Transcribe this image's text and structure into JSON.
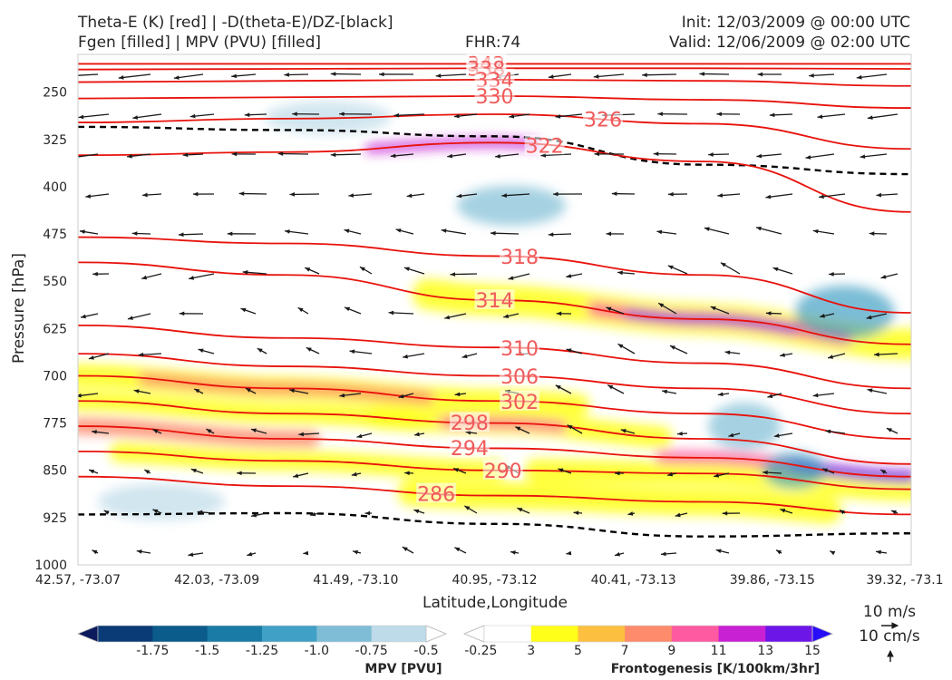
{
  "header": {
    "left_line1": "Theta-E (K) [red] | -D(theta-E)/DZ-[black]",
    "left_line2": "Fgen [filled] | MPV (PVU) [filled]",
    "center": "FHR:74",
    "right_line1": "Init: 12/03/2009 @ 00:00 UTC",
    "right_line2": "Valid: 12/06/2009 @ 02:00 UTC"
  },
  "chart_data": {
    "type": "cross-section",
    "xlabel": "Latitude,Longitude",
    "ylabel": "Pressure [hPa]",
    "x_tick_labels": [
      "42.57, -73.07",
      "42.03, -73.09",
      "41.49, -73.10",
      "40.95, -73.12",
      "40.41, -73.13",
      "39.86, -73.15",
      "39.32, -73.1"
    ],
    "y_ticks": [
      250,
      325,
      400,
      475,
      550,
      625,
      700,
      775,
      850,
      925,
      1000
    ],
    "ylim": [
      1000,
      190
    ],
    "y_scale": "linear",
    "theta_e_contours": [
      {
        "label": "342",
        "y": [
          205,
          205,
          205,
          205,
          205
        ]
      },
      {
        "label": "338",
        "y": [
          214,
          213,
          212,
          212,
          213
        ]
      },
      {
        "label": "334",
        "y": [
          234,
          232,
          230,
          232,
          240
        ]
      },
      {
        "label": "330",
        "y": [
          260,
          258,
          256,
          262,
          275
        ]
      },
      {
        "label": "326",
        "y": [
          298,
          292,
          285,
          300,
          340
        ]
      },
      {
        "label": "322",
        "y": [
          350,
          345,
          330,
          360,
          440
        ]
      },
      {
        "label": "318",
        "y": [
          480,
          490,
          510,
          540,
          600
        ]
      },
      {
        "label": "314",
        "y": [
          520,
          540,
          580,
          610,
          650
        ]
      },
      {
        "label": "310",
        "y": [
          620,
          640,
          655,
          680,
          720
        ]
      },
      {
        "label": "306",
        "y": [
          665,
          685,
          700,
          720,
          760
        ]
      },
      {
        "label": "302",
        "y": [
          700,
          720,
          740,
          760,
          800
        ]
      },
      {
        "label": "298",
        "y": [
          740,
          760,
          775,
          800,
          840
        ]
      },
      {
        "label": "294",
        "y": [
          780,
          800,
          815,
          830,
          860
        ]
      },
      {
        "label": "290",
        "y": [
          820,
          835,
          850,
          855,
          880
        ]
      },
      {
        "label": "286",
        "y": [
          860,
          875,
          890,
          900,
          920
        ]
      }
    ],
    "ddz_contours": [
      {
        "y": [
          305,
          310,
          320,
          365,
          380
        ]
      },
      {
        "y": [
          920,
          918,
          935,
          955,
          950
        ]
      }
    ],
    "fgen_colorbar": {
      "title": "Frontogenesis [K/100km/3hr]",
      "ticks": [
        "3",
        "5",
        "7",
        "9",
        "11",
        "13",
        "15"
      ],
      "colors": [
        "#ffffff",
        "#ffff1a",
        "#fcbf40",
        "#fd8b6c",
        "#fe5aa1",
        "#c721d3",
        "#6d16e8",
        "#280df9"
      ]
    },
    "mpv_colorbar": {
      "title": "MPV [PVU]",
      "ticks": [
        "-1.75",
        "-1.5",
        "-1.25",
        "-1.0",
        "-0.75",
        "-0.5",
        "-0.25"
      ],
      "colors": [
        "#0b1b5c",
        "#0a3b76",
        "#0b5b8b",
        "#1a7ba6",
        "#41a0c5",
        "#7fbdd6",
        "#bddbe8",
        "#ffffff"
      ]
    },
    "vector_key": {
      "primary": "10 m/s",
      "secondary": "10 cm/s"
    }
  }
}
